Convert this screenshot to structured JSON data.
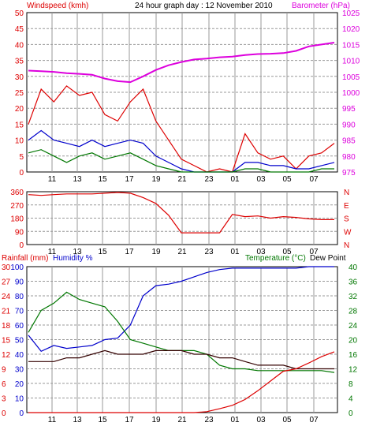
{
  "header": {
    "windspeed_label": "Windspeed (kmh)",
    "title": "24 hour graph day : 12 November 2010",
    "barometer_label": "Barometer (hPa)"
  },
  "lower_header": {
    "rainfall_label": "Rainfall (mm)",
    "humidity_label": "Humidity %",
    "temperature_label": "Temperature (°C)",
    "dewpoint_label": "Dew Point"
  },
  "colors": {
    "wind_gust": "#dd0000",
    "wind_avg": "#0000cc",
    "wind_low": "#007700",
    "barometer": "#dd00dd",
    "direction": "#dd0000",
    "rainfall": "#dd0000",
    "humidity": "#0000cc",
    "temperature": "#007700",
    "dewpoint": "#330000",
    "grid": "#999999"
  },
  "chart_data": [
    {
      "type": "line",
      "title": "24 hour graph day : 12 November 2010",
      "x_ticks": [
        "11",
        "13",
        "15",
        "17",
        "19",
        "21",
        "23",
        "01",
        "03",
        "05",
        "07"
      ],
      "y_left_label": "Windspeed (kmh)",
      "y_left_ticks": [
        0,
        5,
        10,
        15,
        20,
        25,
        30,
        35,
        40,
        45,
        50
      ],
      "y_left_range": [
        0,
        50
      ],
      "y_right_label": "Barometer (hPa)",
      "y_right_ticks": [
        975,
        980,
        985,
        990,
        995,
        1000,
        1005,
        1010,
        1015,
        1020,
        1025
      ],
      "y_right_range": [
        975,
        1025
      ],
      "x": [
        0,
        1,
        2,
        3,
        4,
        5,
        6,
        7,
        8,
        9,
        10,
        11,
        12,
        13,
        14,
        15,
        16,
        17,
        18,
        19,
        20,
        21,
        22,
        23,
        24
      ],
      "series": [
        {
          "name": "Barometer",
          "axis": "right",
          "values": [
            1006.8,
            1006.6,
            1006.4,
            1006.0,
            1005.8,
            1005.5,
            1004.3,
            1003.5,
            1003.2,
            1005.0,
            1007.0,
            1008.5,
            1009.5,
            1010.3,
            1010.6,
            1011.0,
            1011.2,
            1011.7,
            1012.0,
            1012.1,
            1012.3,
            1013.0,
            1014.4,
            1015.0,
            1015.6
          ]
        },
        {
          "name": "Gust",
          "axis": "left",
          "values": [
            15,
            26,
            22,
            27,
            24,
            25,
            18,
            16,
            22,
            26,
            16,
            10,
            4,
            2,
            0,
            1,
            0,
            12,
            6,
            4,
            5,
            1,
            5,
            6,
            9
          ]
        },
        {
          "name": "Average",
          "axis": "left",
          "values": [
            10,
            13,
            10,
            9,
            8,
            10,
            8,
            9,
            10,
            9,
            5,
            3,
            1,
            0,
            0,
            0,
            0,
            3,
            3,
            2,
            2,
            1,
            1,
            2,
            3
          ]
        },
        {
          "name": "Low",
          "axis": "left",
          "values": [
            6,
            7,
            5,
            3,
            5,
            6,
            4,
            5,
            6,
            4,
            2,
            1,
            0,
            0,
            0,
            0,
            0,
            1,
            1,
            0,
            0,
            0,
            0,
            1,
            1
          ]
        }
      ]
    },
    {
      "type": "line",
      "x_ticks": [
        "11",
        "13",
        "15",
        "17",
        "19",
        "21",
        "23",
        "01",
        "03",
        "05",
        "07"
      ],
      "y_left_ticks": [
        0,
        90,
        180,
        270,
        360
      ],
      "y_left_range": [
        0,
        360
      ],
      "y_right_ticks": [
        "N",
        "W",
        "S",
        "E",
        "N"
      ],
      "x": [
        0,
        1,
        2,
        3,
        4,
        5,
        6,
        7,
        8,
        9,
        10,
        11,
        12,
        13,
        14,
        15,
        16,
        17,
        18,
        19,
        20,
        21,
        22,
        23,
        24
      ],
      "series": [
        {
          "name": "Wind Direction",
          "values": [
            340,
            335,
            340,
            345,
            345,
            345,
            350,
            355,
            350,
            320,
            280,
            200,
            80,
            80,
            80,
            80,
            205,
            190,
            195,
            180,
            190,
            185,
            175,
            170,
            170
          ]
        }
      ]
    },
    {
      "type": "line",
      "x_ticks": [
        "11",
        "13",
        "15",
        "17",
        "19",
        "21",
        "23",
        "01",
        "03",
        "05",
        "07"
      ],
      "y_left_label": "Rainfall (mm) Humidity %",
      "y_left_ticks_rainfall": [
        0,
        3,
        6,
        9,
        12,
        15,
        18,
        21,
        24,
        27,
        30
      ],
      "y_left_ticks_humidity": [
        0,
        10,
        20,
        30,
        40,
        50,
        60,
        70,
        80,
        90,
        100
      ],
      "y_left_range_humidity": [
        0,
        100
      ],
      "y_right_label": "Temperature (°C) Dew Point",
      "y_right_ticks": [
        0,
        4,
        8,
        12,
        16,
        20,
        24,
        28,
        32,
        36,
        40
      ],
      "y_right_range": [
        0,
        40
      ],
      "x": [
        0,
        1,
        2,
        3,
        4,
        5,
        6,
        7,
        8,
        9,
        10,
        11,
        12,
        13,
        14,
        15,
        16,
        17,
        18,
        19,
        20,
        21,
        22,
        23,
        24
      ],
      "series": [
        {
          "name": "Humidity",
          "axis": "humidity",
          "values": [
            53,
            42,
            46,
            44,
            45,
            46,
            50,
            51,
            60,
            80,
            87,
            88,
            90,
            93,
            96,
            98,
            99,
            99,
            99,
            99,
            99,
            99,
            100,
            100,
            100
          ]
        },
        {
          "name": "Temperature",
          "axis": "right",
          "values": [
            22,
            28,
            30,
            33,
            31,
            30,
            29,
            25,
            20,
            19,
            18,
            17,
            17,
            17,
            16,
            13,
            12,
            12,
            11.5,
            11.5,
            11.5,
            11.5,
            11.5,
            11.5,
            11
          ]
        },
        {
          "name": "Dew Point",
          "axis": "right",
          "values": [
            14,
            14,
            14,
            15,
            15,
            16,
            17,
            16,
            16,
            16,
            17,
            17,
            17,
            16,
            16,
            15,
            15,
            14,
            13,
            13,
            13,
            12,
            12,
            12,
            12
          ]
        },
        {
          "name": "Rainfall",
          "axis": "rainfall",
          "values": [
            0,
            0,
            0,
            0,
            0,
            0,
            0,
            0,
            0,
            0,
            0,
            0,
            0,
            0,
            0.2,
            0.8,
            1.5,
            2.7,
            4.5,
            6.5,
            8.5,
            9.0,
            10.2,
            11.5,
            12.5
          ]
        }
      ]
    }
  ]
}
